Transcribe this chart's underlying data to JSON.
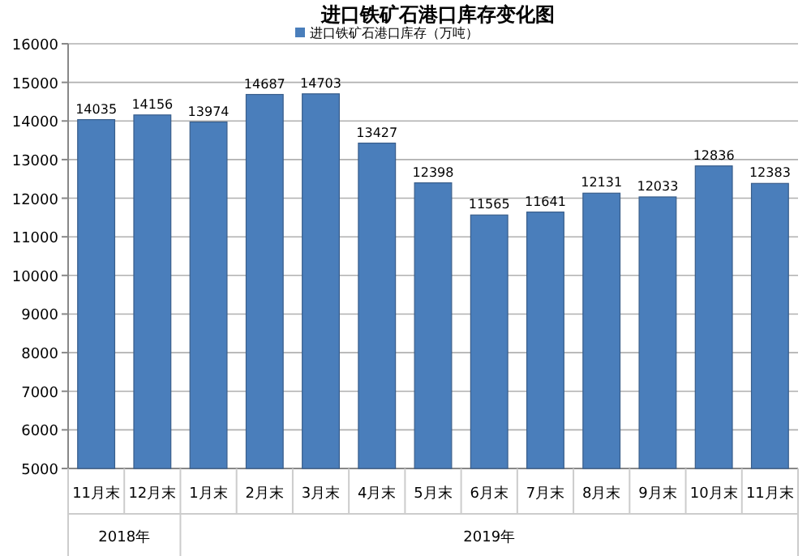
{
  "chart_data": {
    "type": "bar",
    "title": "进口铁矿石港口库存变化图",
    "categories": [
      "11月末",
      "12月末",
      "1月末",
      "2月末",
      "3月末",
      "4月末",
      "5月末",
      "6月末",
      "7月末",
      "8月末",
      "9月末",
      "10月末",
      "11月末"
    ],
    "series": [
      {
        "name": "进口铁矿石港口库存（万吨）",
        "color": "#4a7ebb",
        "values": [
          14035,
          14156,
          13974,
          14687,
          14703,
          13427,
          12398,
          11565,
          11641,
          12131,
          12033,
          12836,
          12383
        ]
      }
    ],
    "ylim": [
      5000,
      16000
    ],
    "yticks": [
      5000,
      6000,
      7000,
      8000,
      9000,
      10000,
      11000,
      12000,
      13000,
      14000,
      15000,
      16000
    ],
    "grid": "y",
    "legend": "top",
    "data_labels": true,
    "annotations": [
      "2018年",
      "2019年"
    ]
  }
}
